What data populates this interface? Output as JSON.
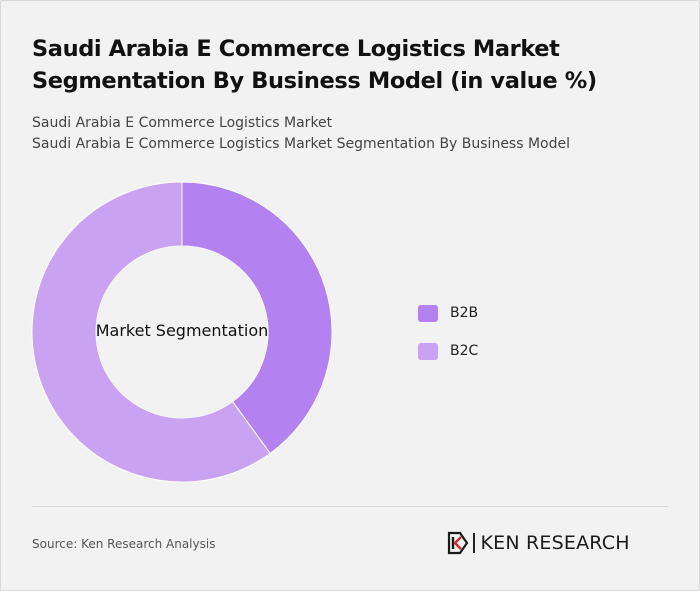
{
  "header": {
    "title": "Saudi Arabia E Commerce Logistics Market Segmentation By Business Model (in value %)",
    "subtitle_line1": "Saudi Arabia E Commerce Logistics Market",
    "subtitle_line2": "Saudi Arabia E Commerce Logistics Market Segmentation By Business Model"
  },
  "chart_data": {
    "type": "pie",
    "variant": "donut",
    "center_label": "Market Segmentation",
    "categories": [
      "B2B",
      "B2C"
    ],
    "values": [
      40,
      60
    ],
    "unit": "%",
    "colors": [
      "#b382f0",
      "#c9a3f2"
    ],
    "legend_position": "right"
  },
  "footer": {
    "source": "Source: Ken Research Analysis",
    "logo_text": "KEN RESEARCH"
  }
}
